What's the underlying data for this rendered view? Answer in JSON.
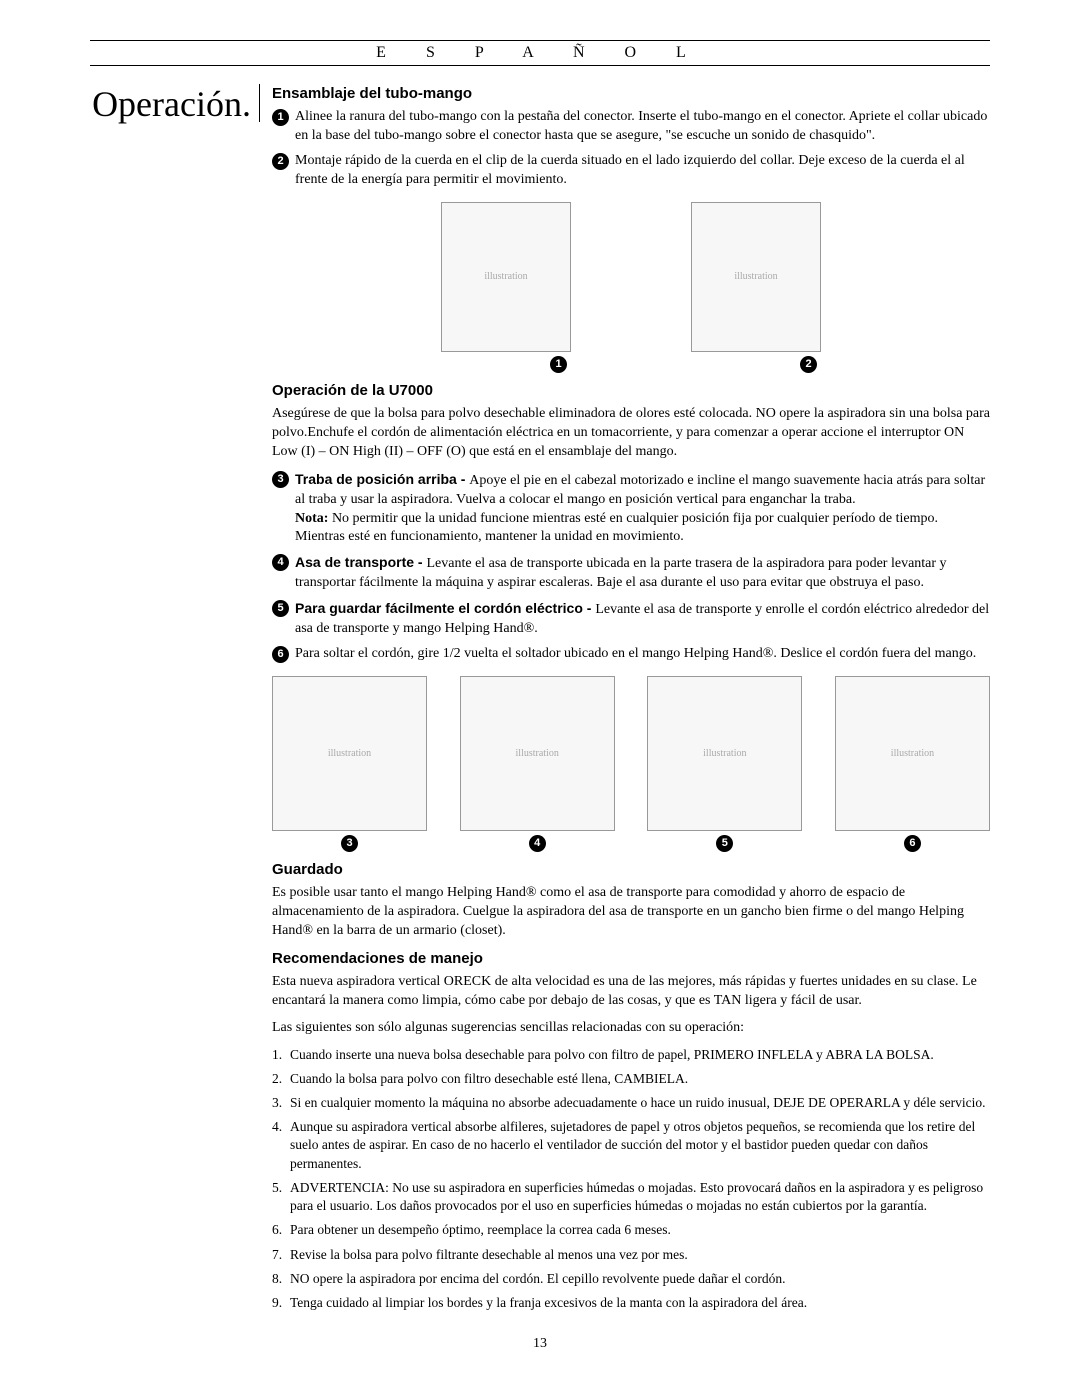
{
  "header": {
    "language": "E S P A Ñ O L"
  },
  "section_title": "Operación.",
  "page_number": "13",
  "s1": {
    "heading": "Ensamblaje del tubo-mango",
    "item1": "Alinee la ranura del tubo-mango con la pestaña del conector. Inserte el tubo-mango en el conector. Apriete el collar ubicado en la base del tubo-mango sobre el conector hasta que se asegure, \"se escuche un sonido de chasquido\".",
    "item2": "Montaje rápido de la cuerda en el clip de la cuerda situado en el lado izquierdo del collar. Deje exceso de la cuerda el al frente de la energía para permitir el movimiento."
  },
  "s2": {
    "heading": "Operación de la U7000",
    "intro": "Asegúrese de que la bolsa para polvo desechable eliminadora de olores esté colocada. NO opere la aspiradora sin una bolsa para polvo.Enchufe el cordón de alimentación eléctrica en un tomacorriente, y para comenzar a operar accione el interruptor ON Low (I) – ON High (II) – OFF (O) que está en el ensamblaje del mango.",
    "item3_label": "Traba de posición arriba - ",
    "item3_text": "Apoye el pie en el cabezal motorizado e incline el mango suavemente hacia atrás para soltar al traba y usar la aspiradora. Vuelva a colocar el mango en posición vertical para enganchar la traba.",
    "item3_note_label": "Nota:",
    "item3_note": " No permitir que la unidad funcione mientras esté en cualquier posición fija por cualquier período de tiempo. Mientras esté en funcionamiento, mantener la unidad en movimiento.",
    "item4_label": "Asa de transporte - ",
    "item4_text": "Levante el asa de transporte ubicada en la parte trasera de la aspiradora para poder levantar y transportar fácilmente la máquina y aspirar escaleras. Baje el asa durante el uso para evitar que obstruya el paso.",
    "item5_label": "Para guardar fácilmente el cordón eléctrico - ",
    "item5_text": "Levante el asa de transporte y enrolle el cordón eléctrico alrededor del asa de transporte y mango Helping Hand®.",
    "item6": "Para soltar el cordón, gire 1/2 vuelta el soltador ubicado en el mango Helping Hand®. Deslice el cordón fuera del mango."
  },
  "s3": {
    "heading": "Guardado",
    "para": "Es posible usar tanto el mango Helping Hand® como el asa de transporte para comodidad y ahorro de espacio de almacenamiento de la aspiradora. Cuelgue la aspiradora del asa de transporte en un gancho bien firme o del mango Helping Hand® en la barra de un armario (closet)."
  },
  "s4": {
    "heading": "Recomendaciones de manejo",
    "p1": "Esta nueva aspiradora vertical ORECK de alta velocidad es una de las mejores, más rápidas y fuertes unidades en su clase. Le encantará la manera como limpia, cómo cabe por debajo de las cosas, y que es TAN ligera y fácil de usar.",
    "p2": "Las siguientes son sólo algunas sugerencias sencillas relacionadas con su operación:",
    "r1": "Cuando inserte una nueva bolsa desechable para polvo con filtro de papel, PRIMERO INFLELA y ABRA LA BOLSA.",
    "r2": "Cuando la bolsa para polvo con filtro desechable esté llena, CAMBIELA.",
    "r3": "Si en cualquier momento la máquina no absorbe  adecuadamente o hace un ruido inusual, DEJE DE OPERARLA y déle servicio.",
    "r4": "Aunque su aspiradora vertical absorbe alfileres, sujetadores de papel y otros objetos pequeños, se recomienda que los retire del suelo antes de aspirar. En caso de no hacerlo el ventilador de succión del motor y el bastidor pueden quedar con daños permanentes.",
    "r5": "ADVERTENCIA: No use su aspiradora en superficies húmedas o mojadas. Esto provocará daños en la  aspiradora y es peligroso para el usuario. Los daños provocados por el uso en superficies húmedas o mojadas no están cubiertos por la garantía.",
    "r6": "Para obtener un desempeño óptimo, reemplace la correa cada 6 meses.",
    "r7": "Revise la bolsa para polvo filtrante desechable al menos una vez por mes.",
    "r8": "NO opere la aspiradora por encima del cordón. El cepillo revolvente puede dañar el cordón.",
    "r9": "Tenga cuidado al limpiar los bordes y la franja excesivos de la manta con la aspiradora del área."
  },
  "fig_placeholder": "illustration"
}
